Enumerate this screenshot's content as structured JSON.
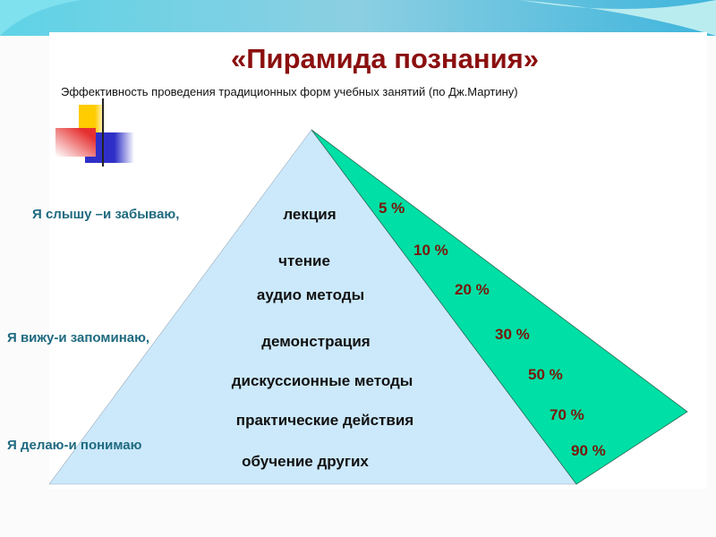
{
  "colors": {
    "title": "#8b0f0f",
    "pyramid": "#cce9fb",
    "wedge": "#00dfa5",
    "percent": "#7a1608",
    "side": "#1f6a80"
  },
  "title": "«Пирамида познания»",
  "subtitle": "Эффективность проведения традиционных форм учебных занятий (по Дж.Мартину)",
  "levels": [
    {
      "label": "лекция",
      "percent": "5 %"
    },
    {
      "label": "чтение",
      "percent": "10 %"
    },
    {
      "label": "аудио методы",
      "percent": "20 %"
    },
    {
      "label": "демонстрация",
      "percent": "30 %"
    },
    {
      "label": "дискуссионные методы",
      "percent": "50 %"
    },
    {
      "label": "практические действия",
      "percent": "70 %"
    },
    {
      "label": "обучение других",
      "percent": "90 %"
    }
  ],
  "side_labels": [
    "Я слышу –и забываю,",
    "Я вижу-и запоминаю,",
    "Я делаю-и понимаю"
  ]
}
